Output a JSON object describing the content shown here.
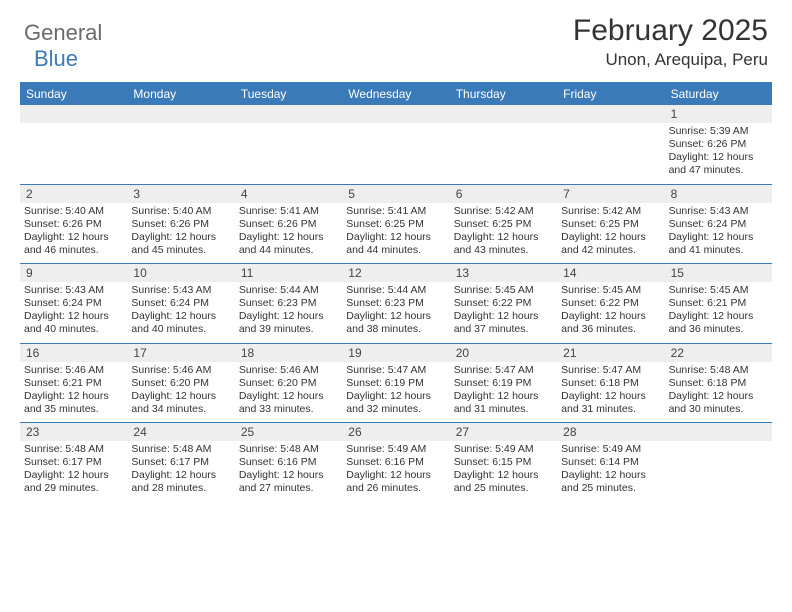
{
  "logo": {
    "general": "General",
    "blue": "Blue"
  },
  "header": {
    "month_title": "February 2025",
    "location": "Unon, Arequipa, Peru"
  },
  "style": {
    "accent": "#3a7ab8",
    "header_bg": "#3a7ab8",
    "header_fg": "#ffffff",
    "daynum_bg": "#eeeeee",
    "body_font": "Arial",
    "title_fontsize": 30,
    "location_fontsize": 17,
    "weekday_fontsize": 12,
    "daynum_fontsize": 12,
    "cell_fontsize": 10.5
  },
  "weekdays": [
    "Sunday",
    "Monday",
    "Tuesday",
    "Wednesday",
    "Thursday",
    "Friday",
    "Saturday"
  ],
  "weeks": [
    [
      {
        "n": "",
        "sr": "",
        "ss": "",
        "dl": ""
      },
      {
        "n": "",
        "sr": "",
        "ss": "",
        "dl": ""
      },
      {
        "n": "",
        "sr": "",
        "ss": "",
        "dl": ""
      },
      {
        "n": "",
        "sr": "",
        "ss": "",
        "dl": ""
      },
      {
        "n": "",
        "sr": "",
        "ss": "",
        "dl": ""
      },
      {
        "n": "",
        "sr": "",
        "ss": "",
        "dl": ""
      },
      {
        "n": "1",
        "sr": "Sunrise: 5:39 AM",
        "ss": "Sunset: 6:26 PM",
        "dl": "Daylight: 12 hours and 47 minutes."
      }
    ],
    [
      {
        "n": "2",
        "sr": "Sunrise: 5:40 AM",
        "ss": "Sunset: 6:26 PM",
        "dl": "Daylight: 12 hours and 46 minutes."
      },
      {
        "n": "3",
        "sr": "Sunrise: 5:40 AM",
        "ss": "Sunset: 6:26 PM",
        "dl": "Daylight: 12 hours and 45 minutes."
      },
      {
        "n": "4",
        "sr": "Sunrise: 5:41 AM",
        "ss": "Sunset: 6:26 PM",
        "dl": "Daylight: 12 hours and 44 minutes."
      },
      {
        "n": "5",
        "sr": "Sunrise: 5:41 AM",
        "ss": "Sunset: 6:25 PM",
        "dl": "Daylight: 12 hours and 44 minutes."
      },
      {
        "n": "6",
        "sr": "Sunrise: 5:42 AM",
        "ss": "Sunset: 6:25 PM",
        "dl": "Daylight: 12 hours and 43 minutes."
      },
      {
        "n": "7",
        "sr": "Sunrise: 5:42 AM",
        "ss": "Sunset: 6:25 PM",
        "dl": "Daylight: 12 hours and 42 minutes."
      },
      {
        "n": "8",
        "sr": "Sunrise: 5:43 AM",
        "ss": "Sunset: 6:24 PM",
        "dl": "Daylight: 12 hours and 41 minutes."
      }
    ],
    [
      {
        "n": "9",
        "sr": "Sunrise: 5:43 AM",
        "ss": "Sunset: 6:24 PM",
        "dl": "Daylight: 12 hours and 40 minutes."
      },
      {
        "n": "10",
        "sr": "Sunrise: 5:43 AM",
        "ss": "Sunset: 6:24 PM",
        "dl": "Daylight: 12 hours and 40 minutes."
      },
      {
        "n": "11",
        "sr": "Sunrise: 5:44 AM",
        "ss": "Sunset: 6:23 PM",
        "dl": "Daylight: 12 hours and 39 minutes."
      },
      {
        "n": "12",
        "sr": "Sunrise: 5:44 AM",
        "ss": "Sunset: 6:23 PM",
        "dl": "Daylight: 12 hours and 38 minutes."
      },
      {
        "n": "13",
        "sr": "Sunrise: 5:45 AM",
        "ss": "Sunset: 6:22 PM",
        "dl": "Daylight: 12 hours and 37 minutes."
      },
      {
        "n": "14",
        "sr": "Sunrise: 5:45 AM",
        "ss": "Sunset: 6:22 PM",
        "dl": "Daylight: 12 hours and 36 minutes."
      },
      {
        "n": "15",
        "sr": "Sunrise: 5:45 AM",
        "ss": "Sunset: 6:21 PM",
        "dl": "Daylight: 12 hours and 36 minutes."
      }
    ],
    [
      {
        "n": "16",
        "sr": "Sunrise: 5:46 AM",
        "ss": "Sunset: 6:21 PM",
        "dl": "Daylight: 12 hours and 35 minutes."
      },
      {
        "n": "17",
        "sr": "Sunrise: 5:46 AM",
        "ss": "Sunset: 6:20 PM",
        "dl": "Daylight: 12 hours and 34 minutes."
      },
      {
        "n": "18",
        "sr": "Sunrise: 5:46 AM",
        "ss": "Sunset: 6:20 PM",
        "dl": "Daylight: 12 hours and 33 minutes."
      },
      {
        "n": "19",
        "sr": "Sunrise: 5:47 AM",
        "ss": "Sunset: 6:19 PM",
        "dl": "Daylight: 12 hours and 32 minutes."
      },
      {
        "n": "20",
        "sr": "Sunrise: 5:47 AM",
        "ss": "Sunset: 6:19 PM",
        "dl": "Daylight: 12 hours and 31 minutes."
      },
      {
        "n": "21",
        "sr": "Sunrise: 5:47 AM",
        "ss": "Sunset: 6:18 PM",
        "dl": "Daylight: 12 hours and 31 minutes."
      },
      {
        "n": "22",
        "sr": "Sunrise: 5:48 AM",
        "ss": "Sunset: 6:18 PM",
        "dl": "Daylight: 12 hours and 30 minutes."
      }
    ],
    [
      {
        "n": "23",
        "sr": "Sunrise: 5:48 AM",
        "ss": "Sunset: 6:17 PM",
        "dl": "Daylight: 12 hours and 29 minutes."
      },
      {
        "n": "24",
        "sr": "Sunrise: 5:48 AM",
        "ss": "Sunset: 6:17 PM",
        "dl": "Daylight: 12 hours and 28 minutes."
      },
      {
        "n": "25",
        "sr": "Sunrise: 5:48 AM",
        "ss": "Sunset: 6:16 PM",
        "dl": "Daylight: 12 hours and 27 minutes."
      },
      {
        "n": "26",
        "sr": "Sunrise: 5:49 AM",
        "ss": "Sunset: 6:16 PM",
        "dl": "Daylight: 12 hours and 26 minutes."
      },
      {
        "n": "27",
        "sr": "Sunrise: 5:49 AM",
        "ss": "Sunset: 6:15 PM",
        "dl": "Daylight: 12 hours and 25 minutes."
      },
      {
        "n": "28",
        "sr": "Sunrise: 5:49 AM",
        "ss": "Sunset: 6:14 PM",
        "dl": "Daylight: 12 hours and 25 minutes."
      },
      {
        "n": "",
        "sr": "",
        "ss": "",
        "dl": ""
      }
    ]
  ]
}
